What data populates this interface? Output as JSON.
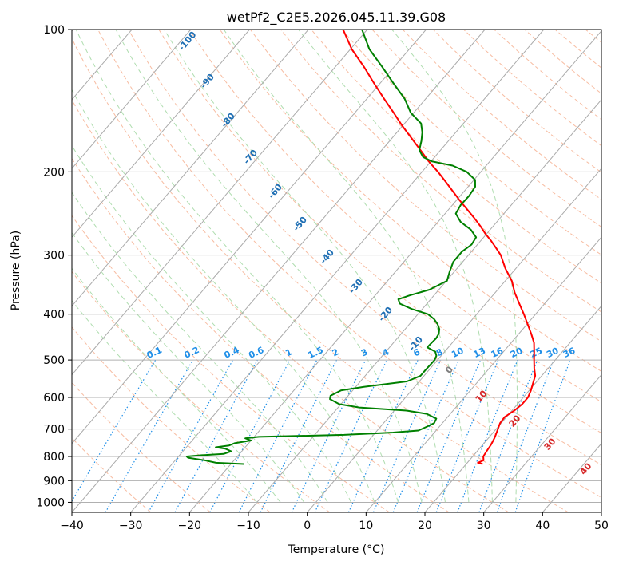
{
  "chart_data": {
    "type": "line",
    "diagram": "skew-t",
    "title": "wetPf2_C2E5.2026.045.11.39.G08",
    "xlabel": "Temperature (°C)",
    "ylabel": "Pressure (hPa)",
    "xlim": [
      -40,
      50
    ],
    "ylim": [
      1050,
      100
    ],
    "y_scale": "log",
    "grid": true,
    "x_ticks": [
      -40,
      -30,
      -20,
      -10,
      0,
      10,
      20,
      30,
      40,
      50
    ],
    "y_ticks": [
      100,
      200,
      300,
      400,
      500,
      600,
      700,
      800,
      900,
      1000
    ],
    "colors": {
      "temperature": "#ff0000",
      "dewpoint": "#008000",
      "isotherm": "#aaaaaa",
      "dry_adiabat": "#f4a582",
      "moist_adiabat": "#a6d9a6",
      "mixing_ratio": "#1f8fe8",
      "label_cold": "#1f6fb4",
      "label_warm": "#d62728"
    },
    "series": [
      {
        "key": "temperature",
        "points": [
          [
            830,
            22.8
          ],
          [
            825,
            21.8
          ],
          [
            815,
            22.4
          ],
          [
            800,
            21.8
          ],
          [
            780,
            21.6
          ],
          [
            755,
            21.4
          ],
          [
            730,
            21.0
          ],
          [
            700,
            20.3
          ],
          [
            680,
            19.8
          ],
          [
            660,
            19.7
          ],
          [
            640,
            20.4
          ],
          [
            620,
            20.8
          ],
          [
            600,
            20.8
          ],
          [
            580,
            20.3
          ],
          [
            560,
            19.6
          ],
          [
            540,
            18.9
          ],
          [
            520,
            17.6
          ],
          [
            500,
            16.4
          ],
          [
            480,
            15.2
          ],
          [
            460,
            13.9
          ],
          [
            440,
            12.1
          ],
          [
            420,
            10.1
          ],
          [
            400,
            8.0
          ],
          [
            380,
            5.7
          ],
          [
            360,
            3.3
          ],
          [
            340,
            1.1
          ],
          [
            320,
            -1.8
          ],
          [
            300,
            -4.5
          ],
          [
            290,
            -6.3
          ],
          [
            280,
            -8.2
          ],
          [
            270,
            -10.3
          ],
          [
            260,
            -12.3
          ],
          [
            250,
            -14.5
          ],
          [
            240,
            -16.9
          ],
          [
            230,
            -19.4
          ],
          [
            220,
            -21.9
          ],
          [
            210,
            -24.5
          ],
          [
            200,
            -27.3
          ],
          [
            190,
            -30.4
          ],
          [
            180,
            -33.4
          ],
          [
            170,
            -36.6
          ],
          [
            160,
            -40.0
          ],
          [
            150,
            -43.4
          ],
          [
            140,
            -47.1
          ],
          [
            130,
            -51.0
          ],
          [
            120,
            -55.1
          ],
          [
            110,
            -59.8
          ],
          [
            100,
            -64.1
          ]
        ]
      },
      {
        "key": "dewpoint",
        "points": [
          [
            830,
            -17.8
          ],
          [
            825,
            -22.7
          ],
          [
            815,
            -25.0
          ],
          [
            805,
            -28.2
          ],
          [
            800,
            -28.6
          ],
          [
            795,
            -26.2
          ],
          [
            790,
            -22.7
          ],
          [
            780,
            -21.8
          ],
          [
            770,
            -23.2
          ],
          [
            765,
            -25.0
          ],
          [
            758,
            -23.0
          ],
          [
            750,
            -22.4
          ],
          [
            740,
            -20.0
          ],
          [
            732,
            -21.3
          ],
          [
            727,
            -19.2
          ],
          [
            720,
            -5.0
          ],
          [
            712,
            3.0
          ],
          [
            705,
            7.0
          ],
          [
            690,
            8.0
          ],
          [
            680,
            8.6
          ],
          [
            665,
            8.3
          ],
          [
            650,
            6.0
          ],
          [
            640,
            2.2
          ],
          [
            630,
            -6.4
          ],
          [
            620,
            -10.3
          ],
          [
            605,
            -12.6
          ],
          [
            595,
            -13.0
          ],
          [
            580,
            -12.0
          ],
          [
            570,
            -8.6
          ],
          [
            555,
            -2.1
          ],
          [
            540,
            -0.6
          ],
          [
            525,
            -0.6
          ],
          [
            500,
            -0.5
          ],
          [
            490,
            -0.8
          ],
          [
            480,
            -1.6
          ],
          [
            470,
            -3.6
          ],
          [
            460,
            -3.5
          ],
          [
            450,
            -3.4
          ],
          [
            440,
            -3.6
          ],
          [
            430,
            -4.2
          ],
          [
            420,
            -5.2
          ],
          [
            410,
            -6.5
          ],
          [
            400,
            -8.3
          ],
          [
            390,
            -11.8
          ],
          [
            380,
            -14.6
          ],
          [
            372,
            -15.5
          ],
          [
            365,
            -14.1
          ],
          [
            355,
            -11.6
          ],
          [
            340,
            -9.9
          ],
          [
            325,
            -10.8
          ],
          [
            310,
            -11.6
          ],
          [
            295,
            -11.6
          ],
          [
            285,
            -11.0
          ],
          [
            275,
            -11.3
          ],
          [
            265,
            -13.3
          ],
          [
            255,
            -16.2
          ],
          [
            245,
            -18.2
          ],
          [
            235,
            -18.6
          ],
          [
            225,
            -18.5
          ],
          [
            215,
            -18.8
          ],
          [
            208,
            -19.8
          ],
          [
            200,
            -22.4
          ],
          [
            194,
            -25.7
          ],
          [
            190,
            -29.9
          ],
          [
            186,
            -32.0
          ],
          [
            180,
            -33.6
          ],
          [
            172,
            -34.6
          ],
          [
            165,
            -35.7
          ],
          [
            158,
            -37.2
          ],
          [
            150,
            -40.5
          ],
          [
            140,
            -43.6
          ],
          [
            130,
            -47.7
          ],
          [
            120,
            -52.0
          ],
          [
            110,
            -56.8
          ],
          [
            100,
            -60.9
          ]
        ]
      }
    ],
    "isotherm_labels": [
      "-100",
      "-90",
      "-80",
      "-70",
      "-60",
      "-50",
      "-40",
      "-30",
      "-20",
      "-10",
      "0",
      "10",
      "20",
      "30",
      "40"
    ],
    "mixing_ratio_labels": [
      "0.1",
      "0.2",
      "0.4",
      "0.6",
      "1",
      "1.5",
      "2",
      "3",
      "4",
      "6",
      "8",
      "10",
      "13",
      "16",
      "20",
      "25",
      "30",
      "36"
    ]
  }
}
